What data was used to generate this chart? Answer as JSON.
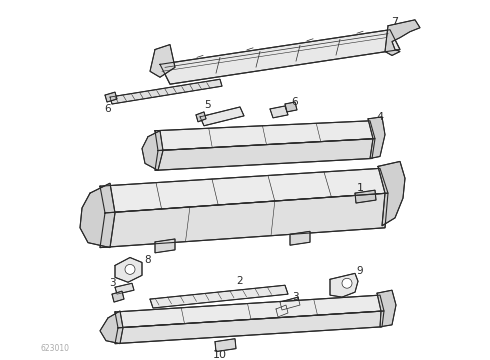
{
  "bg_color": "#ffffff",
  "line_color": "#2a2a2a",
  "label_color": "#2a2a2a",
  "watermark": "623010",
  "watermark_color": "#aaaaaa",
  "fig_w": 4.9,
  "fig_h": 3.6,
  "dpi": 100
}
